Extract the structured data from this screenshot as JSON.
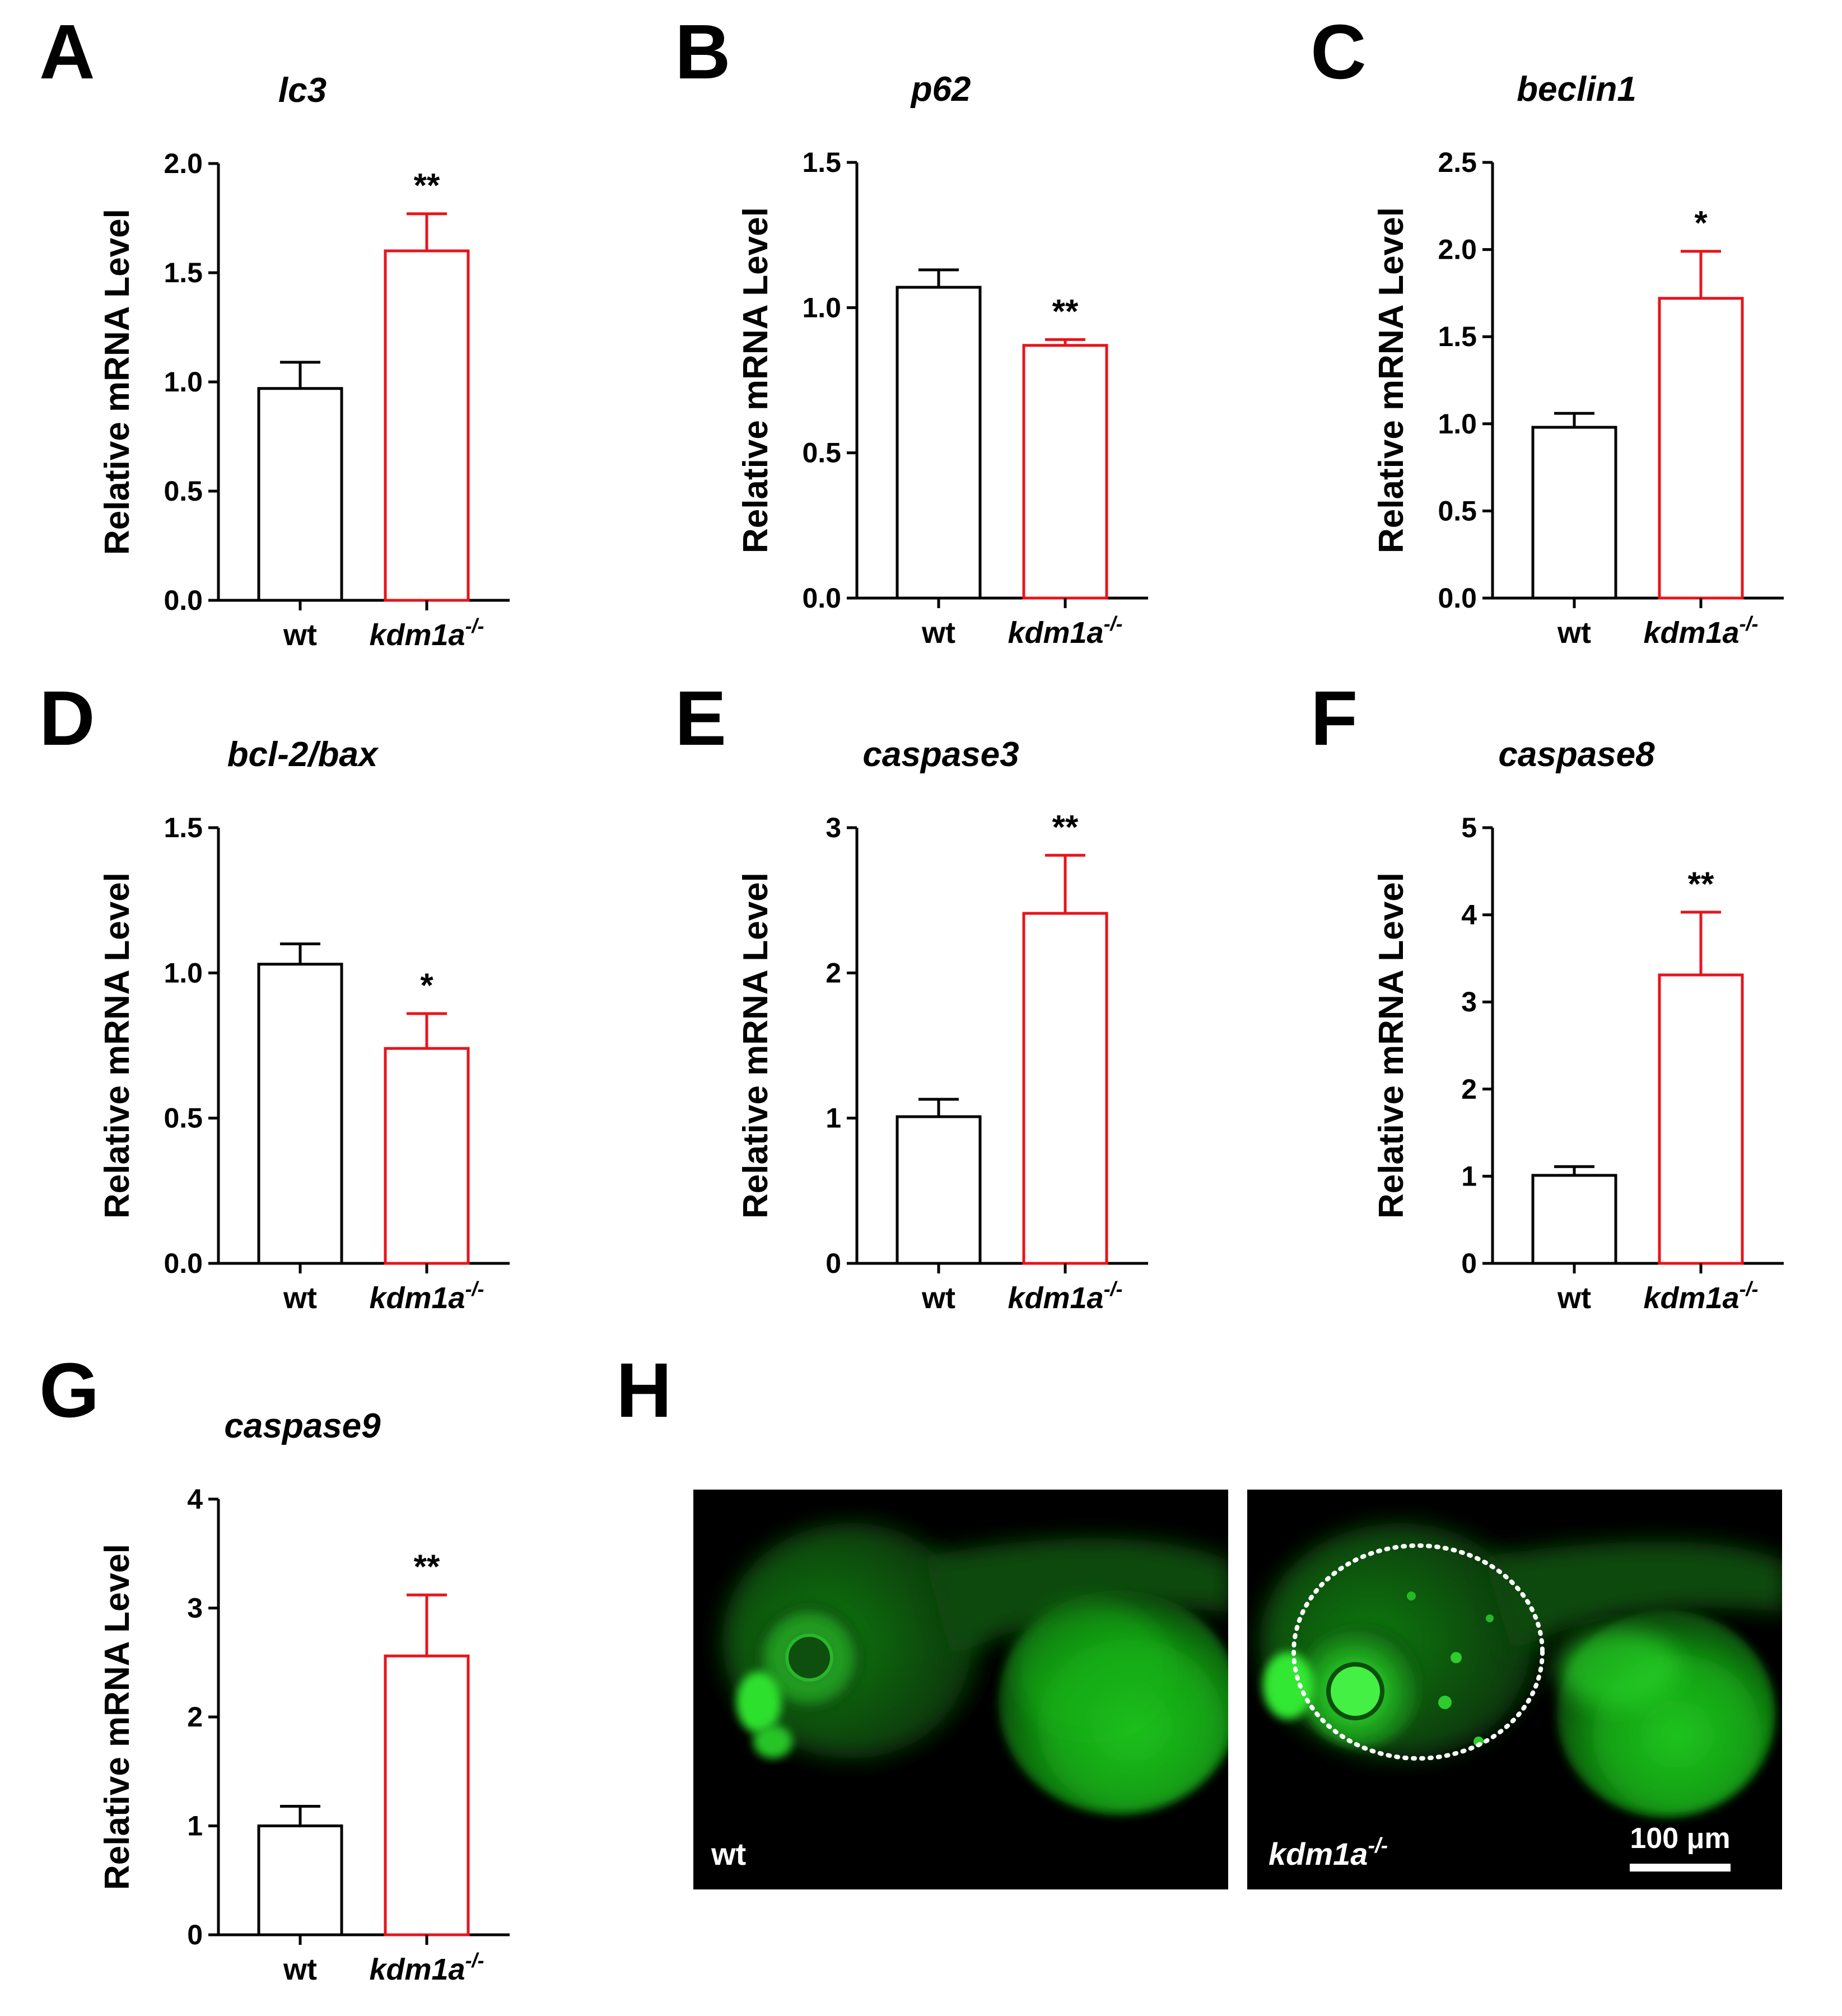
{
  "figure": {
    "panel_letters": [
      "A",
      "B",
      "C",
      "D",
      "E",
      "F",
      "G",
      "H"
    ]
  },
  "colors": {
    "wt": "#000000",
    "kdm1a": "#e8141b",
    "axis": "#000000"
  },
  "chart_data": [
    {
      "panel": "A",
      "type": "bar",
      "title": "lc3",
      "ylabel": "Relative mRNA Level",
      "categories": [
        "wt",
        "kdm1a"
      ],
      "category_superscript": [
        "",
        "-/-"
      ],
      "values": [
        0.97,
        1.6
      ],
      "errors": [
        0.12,
        0.17
      ],
      "significance": [
        "",
        "**"
      ],
      "ylim": [
        0,
        2.0
      ],
      "yticks": [
        "0.0",
        "0.5",
        "1.0",
        "1.5",
        "2.0"
      ],
      "ytick_values": [
        0,
        0.5,
        1.0,
        1.5,
        2.0
      ]
    },
    {
      "panel": "B",
      "type": "bar",
      "title": "p62",
      "ylabel": "Relative mRNA Level",
      "categories": [
        "wt",
        "kdm1a"
      ],
      "category_superscript": [
        "",
        "-/-"
      ],
      "values": [
        1.07,
        0.87
      ],
      "errors": [
        0.06,
        0.02
      ],
      "significance": [
        "",
        "**"
      ],
      "ylim": [
        0,
        1.5
      ],
      "yticks": [
        "0.0",
        "0.5",
        "1.0",
        "1.5"
      ],
      "ytick_values": [
        0,
        0.5,
        1.0,
        1.5
      ]
    },
    {
      "panel": "C",
      "type": "bar",
      "title": "beclin1",
      "ylabel": "Relative mRNA Level",
      "categories": [
        "wt",
        "kdm1a"
      ],
      "category_superscript": [
        "",
        "-/-"
      ],
      "values": [
        0.98,
        1.72
      ],
      "errors": [
        0.08,
        0.27
      ],
      "significance": [
        "",
        "*"
      ],
      "ylim": [
        0,
        2.5
      ],
      "yticks": [
        "0.0",
        "0.5",
        "1.0",
        "1.5",
        "2.0",
        "2.5"
      ],
      "ytick_values": [
        0,
        0.5,
        1.0,
        1.5,
        2.0,
        2.5
      ]
    },
    {
      "panel": "D",
      "type": "bar",
      "title": "bcl-2/bax",
      "ylabel": "Relative mRNA Level",
      "categories": [
        "wt",
        "kdm1a"
      ],
      "category_superscript": [
        "",
        "-/-"
      ],
      "values": [
        1.03,
        0.74
      ],
      "errors": [
        0.07,
        0.12
      ],
      "significance": [
        "",
        "*"
      ],
      "ylim": [
        0,
        1.5
      ],
      "yticks": [
        "0.0",
        "0.5",
        "1.0",
        "1.5"
      ],
      "ytick_values": [
        0,
        0.5,
        1.0,
        1.5
      ]
    },
    {
      "panel": "E",
      "type": "bar",
      "title": "caspase3",
      "ylabel": "Relative mRNA Level",
      "categories": [
        "wt",
        "kdm1a"
      ],
      "category_superscript": [
        "",
        "-/-"
      ],
      "values": [
        1.01,
        2.41
      ],
      "errors": [
        0.12,
        0.4
      ],
      "significance": [
        "",
        "**"
      ],
      "ylim": [
        0,
        3
      ],
      "yticks": [
        "0",
        "1",
        "2",
        "3"
      ],
      "ytick_values": [
        0,
        1,
        2,
        3
      ]
    },
    {
      "panel": "F",
      "type": "bar",
      "title": "caspase8",
      "ylabel": "Relative mRNA Level",
      "categories": [
        "wt",
        "kdm1a"
      ],
      "category_superscript": [
        "",
        "-/-"
      ],
      "values": [
        1.01,
        3.31
      ],
      "errors": [
        0.1,
        0.72
      ],
      "significance": [
        "",
        "**"
      ],
      "ylim": [
        0,
        5
      ],
      "yticks": [
        "0",
        "1",
        "2",
        "3",
        "4",
        "5"
      ],
      "ytick_values": [
        0,
        1,
        2,
        3,
        4,
        5
      ]
    },
    {
      "panel": "G",
      "type": "bar",
      "title": "caspase9",
      "ylabel": "Relative mRNA Level",
      "categories": [
        "wt",
        "kdm1a"
      ],
      "category_superscript": [
        "",
        "-/-"
      ],
      "values": [
        1.0,
        2.56
      ],
      "errors": [
        0.18,
        0.56
      ],
      "significance": [
        "",
        "**"
      ],
      "ylim": [
        0,
        4
      ],
      "yticks": [
        "0",
        "1",
        "2",
        "3",
        "4"
      ],
      "ytick_values": [
        0,
        1,
        2,
        3,
        4
      ]
    }
  ],
  "micrographs": {
    "left_label": "wt",
    "right_label": "kdm1a",
    "right_label_superscript": "-/-",
    "scale_bar_label": "100 μm"
  }
}
